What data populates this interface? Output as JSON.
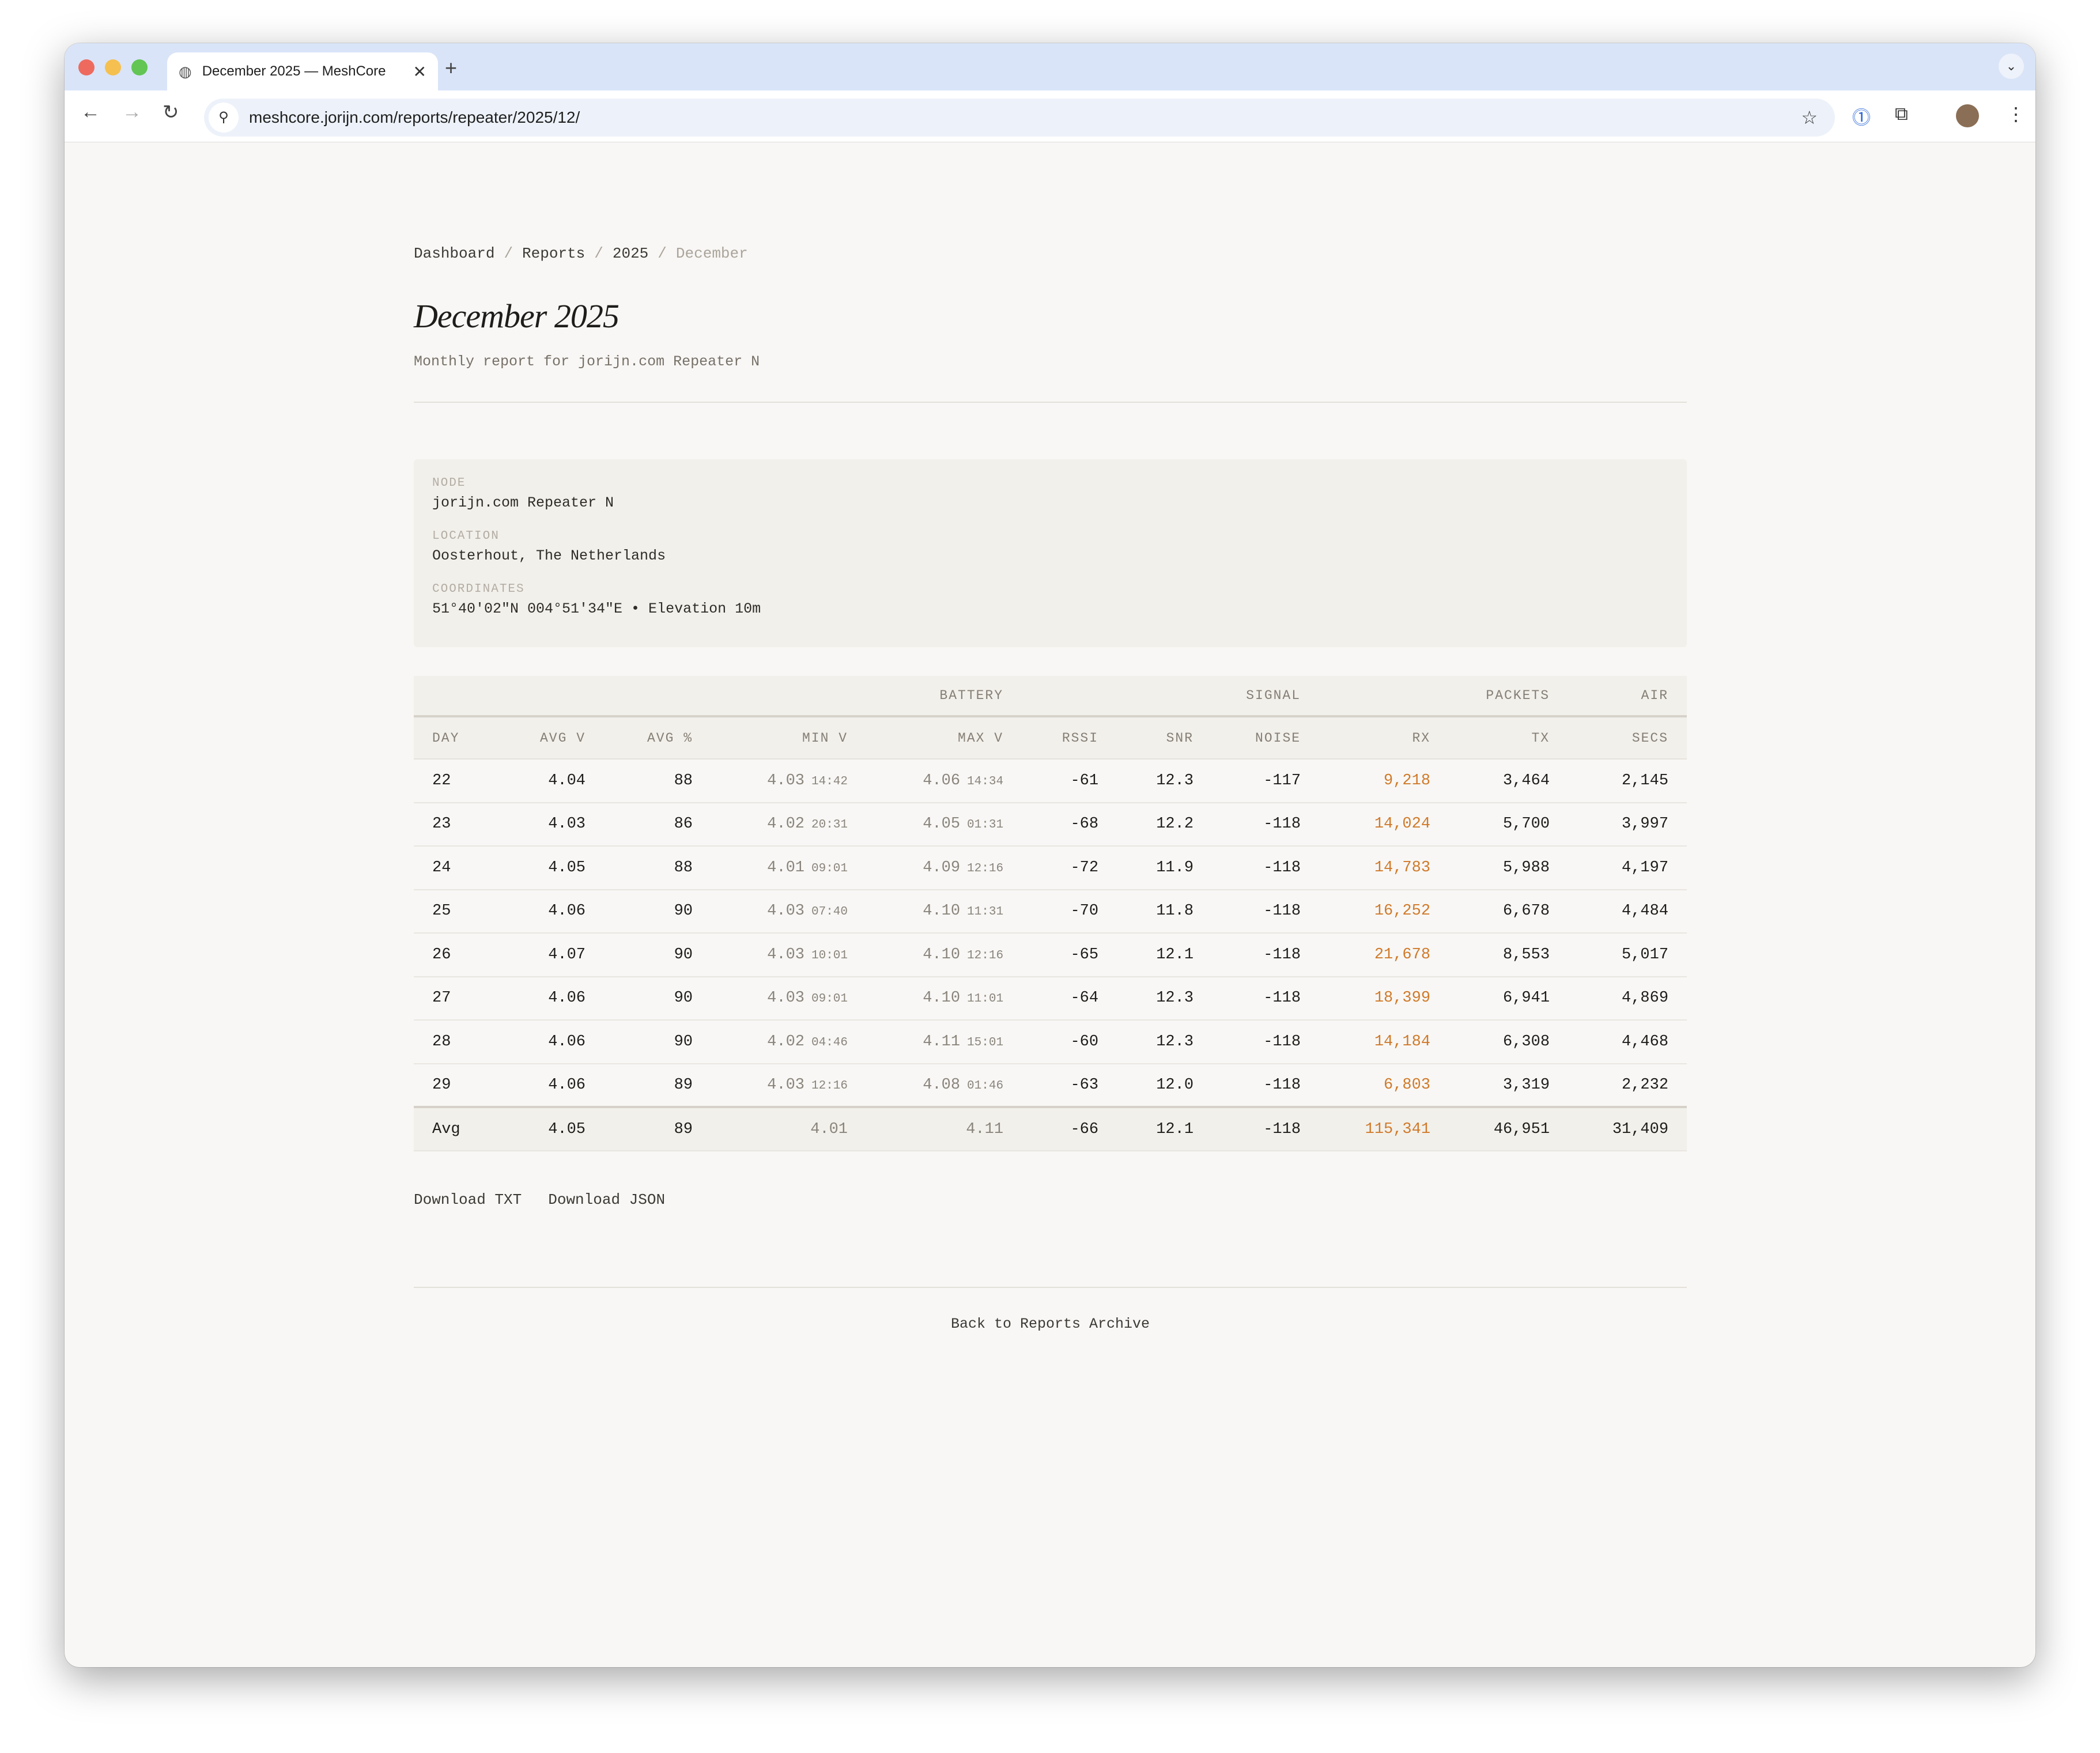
{
  "browser": {
    "tab_title": "December 2025 — MeshCore",
    "url": "meshcore.jorijn.com/reports/repeater/2025/12/",
    "new_tab": "+",
    "close": "✕"
  },
  "breadcrumb": [
    "Dashboard",
    "Reports",
    "2025",
    "December"
  ],
  "title": "December 2025",
  "subtitle": "Monthly report for jorijn.com Repeater N",
  "info": {
    "node_label": "NODE",
    "node": "jorijn.com Repeater N",
    "location_label": "LOCATION",
    "location": "Oosterhout, The Netherlands",
    "coords_label": "COORDINATES",
    "coords": "51°40'02\"N 004°51'34\"E • Elevation 10m"
  },
  "table": {
    "groups": [
      "BATTERY",
      "SIGNAL",
      "PACKETS",
      "AIR"
    ],
    "columns": [
      "DAY",
      "AVG V",
      "AVG %",
      "MIN V",
      "MAX V",
      "RSSI",
      "SNR",
      "NOISE",
      "RX",
      "TX",
      "SECS"
    ],
    "rows": [
      [
        "22",
        "4.04",
        "88",
        "4.03",
        "14:42",
        "4.06",
        "14:34",
        "-61",
        "12.3",
        "-117",
        "9,218",
        "3,464",
        "2,145"
      ],
      [
        "23",
        "4.03",
        "86",
        "4.02",
        "20:31",
        "4.05",
        "01:31",
        "-68",
        "12.2",
        "-118",
        "14,024",
        "5,700",
        "3,997"
      ],
      [
        "24",
        "4.05",
        "88",
        "4.01",
        "09:01",
        "4.09",
        "12:16",
        "-72",
        "11.9",
        "-118",
        "14,783",
        "5,988",
        "4,197"
      ],
      [
        "25",
        "4.06",
        "90",
        "4.03",
        "07:40",
        "4.10",
        "11:31",
        "-70",
        "11.8",
        "-118",
        "16,252",
        "6,678",
        "4,484"
      ],
      [
        "26",
        "4.07",
        "90",
        "4.03",
        "10:01",
        "4.10",
        "12:16",
        "-65",
        "12.1",
        "-118",
        "21,678",
        "8,553",
        "5,017"
      ],
      [
        "27",
        "4.06",
        "90",
        "4.03",
        "09:01",
        "4.10",
        "11:01",
        "-64",
        "12.3",
        "-118",
        "18,399",
        "6,941",
        "4,869"
      ],
      [
        "28",
        "4.06",
        "90",
        "4.02",
        "04:46",
        "4.11",
        "15:01",
        "-60",
        "12.3",
        "-118",
        "14,184",
        "6,308",
        "4,468"
      ],
      [
        "29",
        "4.06",
        "89",
        "4.03",
        "12:16",
        "4.08",
        "01:46",
        "-63",
        "12.0",
        "-118",
        "6,803",
        "3,319",
        "2,232"
      ]
    ],
    "avg": [
      "Avg",
      "4.05",
      "89",
      "4.01",
      "4.11",
      "-66",
      "12.1",
      "-118",
      "115,341",
      "46,951",
      "31,409"
    ]
  },
  "downloads": [
    "Download TXT",
    "Download JSON"
  ],
  "back_link": "Back to Reports Archive",
  "colors": {
    "accent_rx": "#d07a2a",
    "panel": "#f2f0eb",
    "page": "#f8f7f5"
  }
}
